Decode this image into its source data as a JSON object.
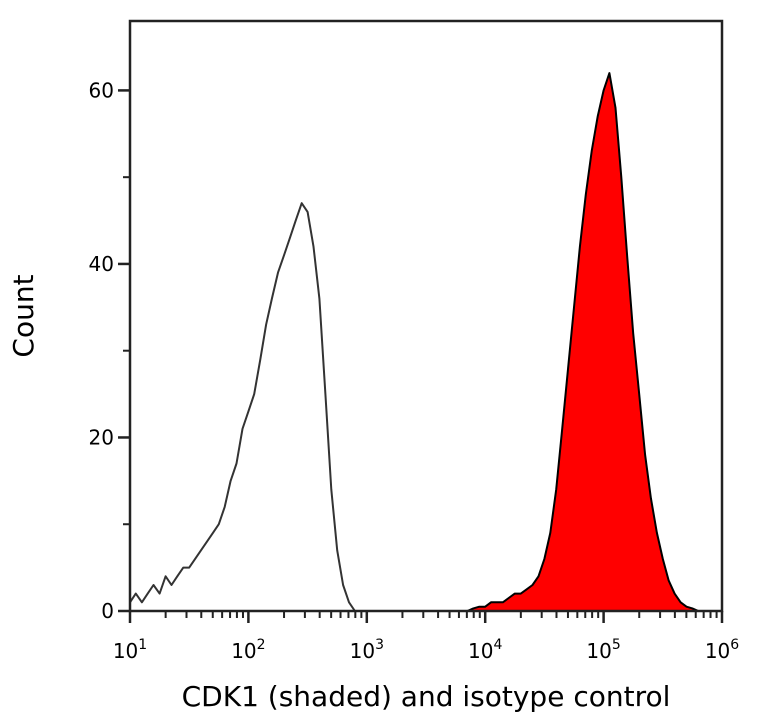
{
  "chart_data": {
    "type": "area",
    "title": "",
    "xlabel": "CDK1 (shaded) and isotype control",
    "ylabel": "Count",
    "xscale": "log",
    "xlim": [
      10,
      1000000
    ],
    "ylim": [
      0,
      68
    ],
    "grid": false,
    "x_ticks": [
      {
        "base": "10",
        "exp": "1",
        "value": 10
      },
      {
        "base": "10",
        "exp": "2",
        "value": 100
      },
      {
        "base": "10",
        "exp": "3",
        "value": 1000
      },
      {
        "base": "10",
        "exp": "4",
        "value": 10000
      },
      {
        "base": "10",
        "exp": "5",
        "value": 100000
      },
      {
        "base": "10",
        "exp": "6",
        "value": 1000000
      }
    ],
    "y_ticks": [
      "0",
      "20",
      "40",
      "60"
    ],
    "x": [
      10,
      11.2,
      12.6,
      14.1,
      15.8,
      17.8,
      20,
      22.4,
      25.1,
      28.2,
      31.6,
      35.5,
      39.8,
      44.7,
      50.1,
      56.2,
      63.1,
      70.8,
      79.4,
      89.1,
      100,
      112,
      126,
      141,
      158,
      178,
      200,
      224,
      251,
      282,
      316,
      355,
      398,
      447,
      501,
      562,
      631,
      708,
      794,
      891,
      1000,
      1120,
      1260,
      1410,
      1580,
      1780,
      2000,
      2240,
      2510,
      2820,
      3160,
      3550,
      3980,
      4470,
      5010,
      5620,
      6310,
      7080,
      7940,
      8910,
      10000,
      11200,
      12600,
      14100,
      15800,
      17800,
      20000,
      22400,
      25100,
      28200,
      31600,
      35500,
      39800,
      44700,
      50100,
      56200,
      63100,
      70800,
      79400,
      89100,
      100000,
      112000,
      126000,
      141000,
      158000,
      178000,
      200000,
      224000,
      251000,
      282000,
      316000,
      355000,
      398000,
      447000,
      501000,
      562000,
      631000,
      708000,
      794000,
      891000,
      1000000
    ],
    "series": [
      {
        "style": "isotype-outline",
        "color": "#333333",
        "fill": "none",
        "values": [
          1,
          2,
          1,
          2,
          3,
          2,
          4,
          3,
          4,
          5,
          5,
          6,
          7,
          8,
          9,
          10,
          12,
          15,
          17,
          21,
          23,
          25,
          29,
          33,
          36,
          39,
          41,
          43,
          45,
          47,
          46,
          42,
          36,
          25,
          14,
          7,
          3,
          1,
          0,
          0,
          0,
          0,
          0,
          0,
          0,
          0,
          0,
          0,
          0,
          0,
          0,
          0,
          0,
          0,
          0,
          0,
          0,
          0,
          0,
          0,
          0,
          0,
          0,
          0,
          0,
          0,
          0,
          0,
          0,
          0,
          0,
          0,
          0,
          0,
          0,
          0,
          0,
          0,
          0,
          0,
          0,
          0,
          0,
          0,
          0,
          0,
          0,
          0,
          0,
          0,
          0,
          0,
          0,
          0,
          0,
          0,
          0,
          0,
          0,
          0,
          0
        ]
      },
      {
        "style": "CDK1-shaded",
        "color": "#000000",
        "fill": "#ff0000",
        "values": [
          0,
          0,
          0,
          0,
          0,
          0,
          0,
          0,
          0,
          0,
          0,
          0,
          0,
          0,
          0,
          0,
          0,
          0,
          0,
          0,
          0,
          0,
          0,
          0,
          0,
          0,
          0,
          0,
          0,
          0,
          0,
          0,
          0,
          0,
          0,
          0,
          0,
          0,
          0,
          0,
          0,
          0,
          0,
          0,
          0,
          0,
          0,
          0,
          0,
          0,
          0,
          0,
          0,
          0,
          0,
          0,
          0,
          0,
          0.3,
          0.5,
          0.5,
          1,
          1,
          1,
          1.5,
          2,
          2,
          2.5,
          3,
          4,
          6,
          9,
          14,
          21,
          28,
          35,
          42,
          48,
          53,
          57,
          60,
          62,
          58,
          50,
          41,
          32,
          25,
          18,
          13,
          9,
          6,
          3.5,
          2,
          1,
          0.5,
          0.3,
          0,
          0,
          0,
          0,
          0
        ]
      }
    ]
  }
}
